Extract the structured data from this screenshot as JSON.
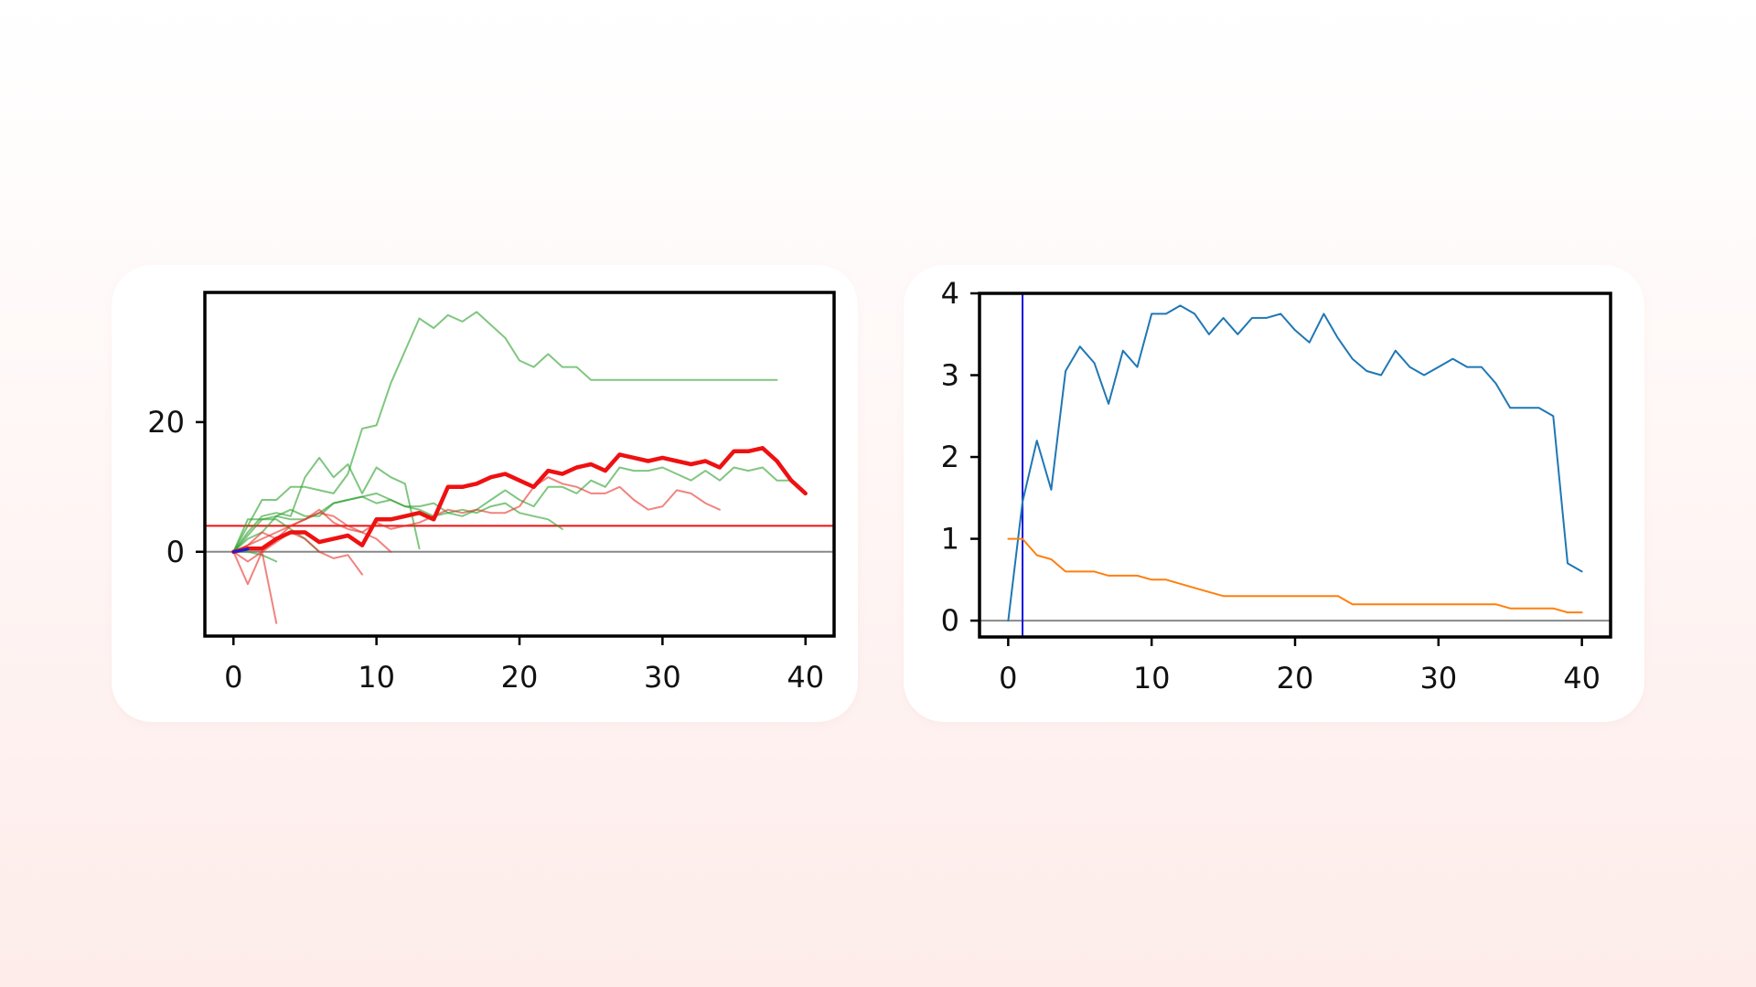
{
  "chart_data": [
    {
      "type": "line",
      "title": "",
      "xlabel": "",
      "ylabel": "",
      "xlim": [
        -2,
        42
      ],
      "ylim": [
        -13,
        40
      ],
      "xticks": [
        0,
        10,
        20,
        30,
        40
      ],
      "yticks": [
        0,
        20
      ],
      "grid": false,
      "legend": "none",
      "hlines": [
        {
          "y": 0,
          "color": "#888888"
        },
        {
          "y": 4,
          "color": "#ee1111"
        }
      ],
      "series": [
        {
          "color": "#2ca02c",
          "opacity": 0.6,
          "x": [
            0,
            1,
            2,
            3,
            4,
            5,
            6,
            7,
            8,
            9,
            10,
            11,
            12,
            13,
            14,
            15,
            16,
            17,
            18,
            19,
            20,
            21,
            22,
            23,
            24,
            25,
            26,
            27,
            28,
            29,
            30,
            31,
            32,
            33,
            34,
            35,
            36,
            37,
            38
          ],
          "y": [
            0,
            4,
            8,
            8,
            10,
            10,
            9.5,
            9,
            12,
            19,
            19.5,
            26,
            31,
            36,
            34.5,
            36.5,
            35.5,
            37,
            35,
            33,
            29.5,
            28.5,
            30.5,
            28.5,
            28.5,
            26.5,
            26.5,
            26.5,
            26.5,
            26.5,
            26.5,
            26.5,
            26.5,
            26.5,
            26.5,
            26.5,
            26.5,
            26.5,
            26.5
          ]
        },
        {
          "color": "#2ca02c",
          "opacity": 0.6,
          "x": [
            0,
            1,
            2,
            3,
            4,
            5,
            6,
            7,
            8,
            9,
            10,
            11,
            12,
            13,
            14,
            15,
            16,
            17,
            18,
            19,
            20,
            21,
            22,
            23,
            24,
            25,
            26,
            27,
            28,
            29,
            30,
            31,
            32,
            33,
            34,
            35,
            36,
            37,
            38,
            39
          ],
          "y": [
            0,
            2,
            3,
            5.5,
            5,
            5,
            6,
            7.5,
            8,
            8.5,
            7.5,
            8,
            7,
            7,
            7.5,
            6,
            5.5,
            6.5,
            8,
            9.5,
            8,
            7,
            10,
            10,
            9,
            11,
            10,
            13,
            12.5,
            12.5,
            13,
            12,
            11,
            12.5,
            11,
            13,
            12.5,
            13,
            11,
            11
          ]
        },
        {
          "color": "#2ca02c",
          "opacity": 0.6,
          "x": [
            0,
            1,
            2,
            3,
            4,
            5,
            6,
            7,
            8,
            9,
            10,
            11,
            12,
            13
          ],
          "y": [
            0,
            3,
            5.5,
            6,
            5.5,
            11.5,
            14.5,
            11.5,
            13.5,
            9,
            13,
            11.5,
            10.5,
            0.5
          ]
        },
        {
          "color": "#2ca02c",
          "opacity": 0.6,
          "x": [
            0,
            1,
            2,
            3,
            4,
            5,
            6,
            7,
            8,
            9,
            10,
            11,
            12,
            13,
            14,
            15,
            16,
            17,
            18,
            19,
            20,
            21,
            22,
            23
          ],
          "y": [
            0,
            2.5,
            5,
            5.5,
            6.5,
            5.5,
            5.5,
            7.5,
            8,
            8.5,
            9,
            8,
            7,
            6.5,
            5.5,
            6,
            6.5,
            6,
            7,
            7.5,
            6,
            5.5,
            5,
            3.5
          ]
        },
        {
          "color": "#2ca02c",
          "opacity": 0.6,
          "x": [
            0,
            1,
            2,
            3,
            4,
            5,
            6
          ],
          "y": [
            0,
            5,
            5,
            5,
            3.5,
            2,
            0
          ]
        },
        {
          "color": "#2ca02c",
          "opacity": 0.6,
          "x": [
            0,
            1,
            2,
            3
          ],
          "y": [
            0,
            0,
            -0.5,
            -1.5
          ]
        },
        {
          "color": "#e8302a",
          "opacity": 0.6,
          "x": [
            0,
            1,
            2,
            3,
            4,
            5,
            6,
            7,
            8,
            9,
            10,
            11,
            12,
            13,
            14,
            15,
            16,
            17,
            18,
            19,
            20,
            21,
            22,
            23,
            24,
            25,
            26,
            27,
            28,
            29,
            30,
            31,
            32,
            33,
            34
          ],
          "y": [
            0,
            1,
            3,
            2,
            4,
            5,
            6.5,
            4.5,
            3.5,
            3,
            4.5,
            3.5,
            4,
            4.5,
            5.5,
            6.5,
            6,
            6.5,
            6,
            6,
            7,
            10,
            11.5,
            10.5,
            10,
            9,
            9,
            10,
            8,
            6.5,
            7,
            9.5,
            9,
            7.5,
            6.5
          ]
        },
        {
          "color": "#e8302a",
          "opacity": 0.6,
          "x": [
            0,
            1,
            2,
            3,
            4,
            5,
            6,
            7,
            8,
            9
          ],
          "y": [
            0,
            -1.5,
            0,
            1.5,
            3,
            2,
            0,
            -1,
            -0.5,
            -3.5
          ]
        },
        {
          "color": "#e8302a",
          "opacity": 0.6,
          "x": [
            0,
            1,
            2,
            3
          ],
          "y": [
            0,
            -5,
            0,
            -11
          ]
        },
        {
          "color": "#e8302a",
          "opacity": 0.6,
          "x": [
            0,
            1,
            2,
            3,
            4,
            5,
            6,
            7,
            8,
            9,
            10,
            11
          ],
          "y": [
            0,
            1,
            2,
            3,
            4,
            5,
            6,
            5.5,
            4,
            3,
            2,
            0
          ]
        },
        {
          "color": "#ee1111",
          "opacity": 1,
          "width": 4.5,
          "x": [
            0,
            1,
            2,
            3,
            4,
            5,
            6,
            7,
            8,
            9,
            10,
            11,
            12,
            13,
            14,
            15,
            16,
            17,
            18,
            19,
            20,
            21,
            22,
            23,
            24,
            25,
            26,
            27,
            28,
            29,
            30,
            31,
            32,
            33,
            34,
            35,
            36,
            37,
            38,
            39,
            40
          ],
          "y": [
            0,
            0.5,
            0.5,
            2,
            3,
            3,
            1.5,
            2,
            2.5,
            1,
            5,
            5,
            5.5,
            6,
            5,
            10,
            10,
            10.5,
            11.5,
            12,
            11,
            10,
            12.5,
            12,
            13,
            13.5,
            12.5,
            15,
            14.5,
            14,
            14.5,
            14,
            13.5,
            14,
            13,
            15.5,
            15.5,
            16,
            14,
            11,
            9
          ]
        },
        {
          "color": "#1122dd",
          "opacity": 1,
          "width": 3,
          "x": [
            0,
            1
          ],
          "y": [
            0,
            0.4
          ]
        }
      ]
    },
    {
      "type": "line",
      "title": "",
      "xlabel": "",
      "ylabel": "",
      "xlim": [
        -2,
        42
      ],
      "ylim": [
        -0.2,
        4.0
      ],
      "xticks": [
        0,
        10,
        20,
        30,
        40
      ],
      "yticks": [
        0,
        1,
        2,
        3,
        4
      ],
      "grid": false,
      "legend": "none",
      "hlines": [
        {
          "y": 0,
          "color": "#888888"
        }
      ],
      "vlines": [
        {
          "x": 1,
          "color": "#1111dd"
        }
      ],
      "series": [
        {
          "color": "#1f77b4",
          "opacity": 1,
          "x": [
            0,
            1,
            2,
            3,
            4,
            5,
            6,
            7,
            8,
            9,
            10,
            11,
            12,
            13,
            14,
            15,
            16,
            17,
            18,
            19,
            20,
            21,
            22,
            23,
            24,
            25,
            26,
            27,
            28,
            29,
            30,
            31,
            32,
            33,
            34,
            35,
            36,
            37,
            38,
            39,
            40
          ],
          "y": [
            0,
            1.45,
            2.2,
            1.6,
            3.05,
            3.35,
            3.15,
            2.65,
            3.3,
            3.1,
            3.75,
            3.75,
            3.85,
            3.75,
            3.5,
            3.7,
            3.5,
            3.7,
            3.7,
            3.75,
            3.55,
            3.4,
            3.75,
            3.45,
            3.2,
            3.05,
            3.0,
            3.3,
            3.1,
            3.0,
            3.1,
            3.2,
            3.1,
            3.1,
            2.9,
            2.6,
            2.6,
            2.6,
            2.5,
            0.7,
            0.6
          ]
        },
        {
          "color": "#ff7f0e",
          "opacity": 1,
          "x": [
            0,
            1,
            2,
            3,
            4,
            5,
            6,
            7,
            8,
            9,
            10,
            11,
            12,
            13,
            14,
            15,
            16,
            17,
            18,
            19,
            20,
            21,
            22,
            23,
            24,
            25,
            26,
            27,
            28,
            29,
            30,
            31,
            32,
            33,
            34,
            35,
            36,
            37,
            38,
            39,
            40
          ],
          "y": [
            1,
            1,
            0.8,
            0.75,
            0.6,
            0.6,
            0.6,
            0.55,
            0.55,
            0.55,
            0.5,
            0.5,
            0.45,
            0.4,
            0.35,
            0.3,
            0.3,
            0.3,
            0.3,
            0.3,
            0.3,
            0.3,
            0.3,
            0.3,
            0.2,
            0.2,
            0.2,
            0.2,
            0.2,
            0.2,
            0.2,
            0.2,
            0.2,
            0.2,
            0.2,
            0.15,
            0.15,
            0.15,
            0.15,
            0.1,
            0.1
          ]
        }
      ]
    }
  ]
}
